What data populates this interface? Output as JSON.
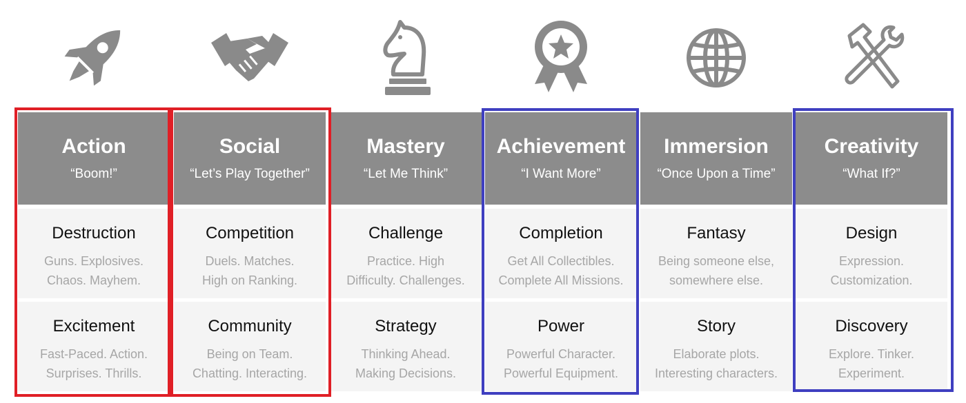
{
  "colors": {
    "header_bg": "#8c8c8c",
    "cell_bg": "#f4f4f4",
    "icon": "#8a8a8a",
    "red_frame": "#e01f26",
    "blue_frame": "#3f3fc0"
  },
  "columns": [
    {
      "icon": "rocket-icon",
      "title": "Action",
      "quote": "“Boom!”",
      "items": [
        {
          "title": "Destruction",
          "lines": [
            "Guns. Explosives.",
            "Chaos. Mayhem."
          ]
        },
        {
          "title": "Excitement",
          "lines": [
            "Fast-Paced. Action.",
            "Surprises. Thrills."
          ]
        }
      ]
    },
    {
      "icon": "handshake-icon",
      "title": "Social",
      "quote": "“Let’s Play Together”",
      "items": [
        {
          "title": "Competition",
          "lines": [
            "Duels. Matches.",
            "High on Ranking."
          ]
        },
        {
          "title": "Community",
          "lines": [
            "Being on Team.",
            "Chatting. Interacting."
          ]
        }
      ]
    },
    {
      "icon": "chess-knight-icon",
      "title": "Mastery",
      "quote": "“Let Me Think”",
      "items": [
        {
          "title": "Challenge",
          "lines": [
            "Practice. High",
            "Difficulty. Challenges."
          ]
        },
        {
          "title": "Strategy",
          "lines": [
            "Thinking Ahead.",
            "Making Decisions."
          ]
        }
      ]
    },
    {
      "icon": "award-ribbon-icon",
      "title": "Achievement",
      "quote": "“I Want More”",
      "items": [
        {
          "title": "Completion",
          "lines": [
            "Get All Collectibles.",
            "Complete All Missions."
          ]
        },
        {
          "title": "Power",
          "lines": [
            "Powerful Character.",
            "Powerful Equipment."
          ]
        }
      ]
    },
    {
      "icon": "globe-icon",
      "title": "Immersion",
      "quote": "“Once Upon a Time”",
      "items": [
        {
          "title": "Fantasy",
          "lines": [
            "Being someone else,",
            "somewhere else."
          ]
        },
        {
          "title": "Story",
          "lines": [
            "Elaborate plots.",
            "Interesting characters."
          ]
        }
      ]
    },
    {
      "icon": "tools-icon",
      "title": "Creativity",
      "quote": "“What If?”",
      "items": [
        {
          "title": "Design",
          "lines": [
            "Expression.",
            "Customization."
          ]
        },
        {
          "title": "Discovery",
          "lines": [
            "Explore. Tinker.",
            "Experiment."
          ]
        }
      ]
    }
  ]
}
